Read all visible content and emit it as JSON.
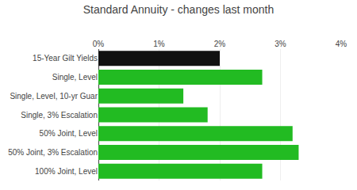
{
  "chart_data": {
    "type": "bar",
    "orientation": "horizontal",
    "title": "Standard Annuity - changes last month",
    "categories": [
      "15-Year Gilt Yields",
      "Single, Level",
      "Single, Level, 10-yr Guar",
      "Single, 3% Escalation",
      "50% Joint, Level",
      "50% Joint, 3% Escalation",
      "100% Joint, Level"
    ],
    "values": [
      2.0,
      2.7,
      1.4,
      1.8,
      3.2,
      3.3,
      2.7
    ],
    "colors": [
      "#111111",
      "#22bb22",
      "#22bb22",
      "#22bb22",
      "#22bb22",
      "#22bb22",
      "#22bb22"
    ],
    "xlim": [
      0,
      4
    ],
    "xticks": [
      {
        "value": 0,
        "label": "0%"
      },
      {
        "value": 1,
        "label": "1%"
      },
      {
        "value": 2,
        "label": "2%"
      },
      {
        "value": 3,
        "label": "3%"
      },
      {
        "value": 4,
        "label": "4%"
      }
    ],
    "grid": true
  }
}
